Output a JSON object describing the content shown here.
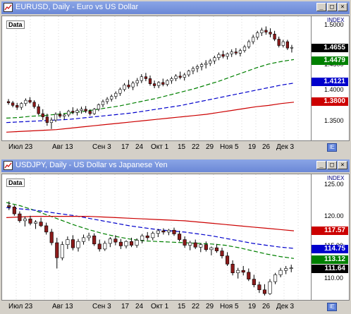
{
  "colors": {
    "bull": "#000000",
    "bear": "#8b1a1a",
    "green_ma": "#008000",
    "blue_ma": "#0000cc",
    "red_ma": "#cc0000",
    "tag_black": "#000000",
    "tag_green": "#008000",
    "tag_blue": "#0000cc",
    "tag_red": "#cc0000"
  },
  "window_buttons": {
    "minimize": "_",
    "maximize": "□",
    "close": "×"
  },
  "top": {
    "title": "EURUSD, Daily - Euro vs US Dollar",
    "data_label": "Data",
    "index_label": "INDEX",
    "axis_ticks": [
      "1.5000",
      "1.4500",
      "1.4000",
      "1.3500"
    ],
    "price_tags": [
      "1.4655",
      "1.4479",
      "1.4121",
      "1.3800"
    ],
    "x_labels": [
      "Июл 23",
      "Авг 13",
      "Сен 3",
      "17",
      "24",
      "Окт 1",
      "15",
      "22",
      "29",
      "Ноя 5",
      "19",
      "26",
      "Дек 3"
    ],
    "corner_icon": "IE",
    "chart_data": {
      "type": "candlestick",
      "ylim": [
        1.32,
        1.515
      ],
      "candles": [
        [
          1.381,
          1.385,
          1.376,
          1.379
        ],
        [
          1.379,
          1.382,
          1.372,
          1.375
        ],
        [
          1.375,
          1.379,
          1.368,
          1.372
        ],
        [
          1.372,
          1.38,
          1.368,
          1.378
        ],
        [
          1.378,
          1.386,
          1.374,
          1.383
        ],
        [
          1.383,
          1.388,
          1.378,
          1.38
        ],
        [
          1.38,
          1.383,
          1.37,
          1.373
        ],
        [
          1.373,
          1.377,
          1.36,
          1.362
        ],
        [
          1.362,
          1.369,
          1.352,
          1.357
        ],
        [
          1.357,
          1.362,
          1.343,
          1.348
        ],
        [
          1.348,
          1.356,
          1.338,
          1.352
        ],
        [
          1.352,
          1.364,
          1.349,
          1.361
        ],
        [
          1.361,
          1.366,
          1.355,
          1.358
        ],
        [
          1.358,
          1.362,
          1.353,
          1.36
        ],
        [
          1.36,
          1.368,
          1.357,
          1.366
        ],
        [
          1.366,
          1.372,
          1.361,
          1.364
        ],
        [
          1.364,
          1.37,
          1.359,
          1.367
        ],
        [
          1.367,
          1.373,
          1.362,
          1.369
        ],
        [
          1.369,
          1.374,
          1.363,
          1.366
        ],
        [
          1.366,
          1.369,
          1.359,
          1.362
        ],
        [
          1.362,
          1.371,
          1.36,
          1.369
        ],
        [
          1.369,
          1.378,
          1.366,
          1.376
        ],
        [
          1.376,
          1.384,
          1.372,
          1.381
        ],
        [
          1.381,
          1.388,
          1.377,
          1.385
        ],
        [
          1.385,
          1.392,
          1.381,
          1.389
        ],
        [
          1.389,
          1.397,
          1.385,
          1.394
        ],
        [
          1.394,
          1.403,
          1.39,
          1.4
        ],
        [
          1.4,
          1.41,
          1.397,
          1.407
        ],
        [
          1.407,
          1.415,
          1.401,
          1.404
        ],
        [
          1.404,
          1.413,
          1.399,
          1.41
        ],
        [
          1.41,
          1.418,
          1.405,
          1.414
        ],
        [
          1.414,
          1.424,
          1.41,
          1.42
        ],
        [
          1.42,
          1.426,
          1.413,
          1.417
        ],
        [
          1.417,
          1.422,
          1.406,
          1.409
        ],
        [
          1.409,
          1.414,
          1.402,
          1.406
        ],
        [
          1.406,
          1.413,
          1.402,
          1.411
        ],
        [
          1.411,
          1.417,
          1.405,
          1.408
        ],
        [
          1.408,
          1.416,
          1.405,
          1.414
        ],
        [
          1.414,
          1.42,
          1.409,
          1.417
        ],
        [
          1.417,
          1.424,
          1.413,
          1.421
        ],
        [
          1.421,
          1.428,
          1.416,
          1.419
        ],
        [
          1.419,
          1.426,
          1.414,
          1.423
        ],
        [
          1.423,
          1.431,
          1.42,
          1.429
        ],
        [
          1.429,
          1.436,
          1.424,
          1.433
        ],
        [
          1.433,
          1.439,
          1.427,
          1.436
        ],
        [
          1.436,
          1.442,
          1.43,
          1.439
        ],
        [
          1.439,
          1.446,
          1.433,
          1.441
        ],
        [
          1.441,
          1.448,
          1.437,
          1.445
        ],
        [
          1.445,
          1.453,
          1.44,
          1.45
        ],
        [
          1.45,
          1.458,
          1.446,
          1.455
        ],
        [
          1.455,
          1.461,
          1.449,
          1.452
        ],
        [
          1.452,
          1.458,
          1.447,
          1.456
        ],
        [
          1.456,
          1.463,
          1.451,
          1.459
        ],
        [
          1.459,
          1.465,
          1.454,
          1.457
        ],
        [
          1.457,
          1.464,
          1.452,
          1.461
        ],
        [
          1.461,
          1.47,
          1.458,
          1.467
        ],
        [
          1.467,
          1.478,
          1.464,
          1.475
        ],
        [
          1.475,
          1.486,
          1.471,
          1.482
        ],
        [
          1.482,
          1.492,
          1.478,
          1.489
        ],
        [
          1.489,
          1.497,
          1.484,
          1.493
        ],
        [
          1.493,
          1.499,
          1.486,
          1.49
        ],
        [
          1.49,
          1.496,
          1.482,
          1.487
        ],
        [
          1.487,
          1.492,
          1.476,
          1.479
        ],
        [
          1.479,
          1.483,
          1.466,
          1.469
        ],
        [
          1.469,
          1.478,
          1.466,
          1.475
        ],
        [
          1.475,
          1.478,
          1.462,
          1.465
        ],
        [
          1.465,
          1.47,
          1.458,
          1.466
        ]
      ],
      "ma": [
        {
          "color_key": "green_ma",
          "dash": true,
          "points": [
            1.355,
            1.356,
            1.358,
            1.359,
            1.361,
            1.363,
            1.365,
            1.368,
            1.371,
            1.374,
            1.378,
            1.382,
            1.386,
            1.391,
            1.396,
            1.401,
            1.407,
            1.413,
            1.42,
            1.427,
            1.434,
            1.44,
            1.444,
            1.447
          ]
        },
        {
          "color_key": "blue_ma",
          "dash": true,
          "points": [
            1.348,
            1.349,
            1.35,
            1.351,
            1.352,
            1.353,
            1.355,
            1.357,
            1.359,
            1.361,
            1.363,
            1.366,
            1.369,
            1.372,
            1.375,
            1.379,
            1.383,
            1.387,
            1.391,
            1.395,
            1.399,
            1.403,
            1.407,
            1.41
          ]
        },
        {
          "color_key": "red_ma",
          "dash": false,
          "points": [
            1.333,
            1.334,
            1.335,
            1.336,
            1.337,
            1.339,
            1.341,
            1.343,
            1.345,
            1.347,
            1.349,
            1.351,
            1.353,
            1.355,
            1.357,
            1.359,
            1.361,
            1.364,
            1.367,
            1.37,
            1.373,
            1.375,
            1.378,
            1.38
          ]
        }
      ]
    }
  },
  "bottom": {
    "title": "USDJPY, Daily - US Dollar vs Japanese Yen",
    "data_label": "Data",
    "index_label": "INDEX",
    "axis_ticks": [
      "125.00",
      "120.00",
      "115.00",
      "110.00"
    ],
    "price_tags": [
      "117.57",
      "114.75",
      "113.12",
      "111.64"
    ],
    "x_labels": [
      "Июл 23",
      "Авг 13",
      "Сен 3",
      "17",
      "24",
      "Окт 1",
      "15",
      "22",
      "29",
      "Ноя 5",
      "19",
      "26",
      "Дек 3"
    ],
    "corner_icon": "IE",
    "chart_data": {
      "type": "candlestick",
      "ylim": [
        106.5,
        126.5
      ],
      "candles": [
        [
          121.5,
          122.2,
          120.8,
          121.3
        ],
        [
          121.3,
          121.6,
          119.9,
          120.2
        ],
        [
          120.2,
          120.6,
          118.8,
          119.1
        ],
        [
          119.1,
          119.8,
          118.2,
          119.4
        ],
        [
          119.4,
          119.9,
          118.4,
          118.7
        ],
        [
          118.7,
          119.2,
          117.8,
          118.9
        ],
        [
          118.9,
          119.6,
          118.1,
          118.3
        ],
        [
          118.3,
          118.8,
          116.9,
          117.3
        ],
        [
          117.3,
          117.8,
          115.2,
          115.6
        ],
        [
          115.6,
          116.4,
          111.5,
          113.2
        ],
        [
          113.2,
          115.8,
          112.8,
          115.3
        ],
        [
          115.3,
          116.6,
          114.6,
          116.1
        ],
        [
          116.1,
          116.8,
          114.4,
          114.8
        ],
        [
          114.8,
          116.2,
          114.2,
          115.8
        ],
        [
          115.8,
          116.9,
          115.3,
          116.4
        ],
        [
          116.4,
          117.2,
          115.9,
          116.7
        ],
        [
          116.7,
          117.1,
          115.1,
          115.4
        ],
        [
          115.4,
          116.1,
          114.2,
          114.6
        ],
        [
          114.6,
          115.9,
          114.3,
          115.5
        ],
        [
          115.5,
          116.5,
          114.9,
          116.2
        ],
        [
          116.2,
          116.8,
          115.2,
          115.7
        ],
        [
          115.7,
          116.2,
          114.6,
          115.1
        ],
        [
          115.1,
          116.0,
          114.7,
          115.8
        ],
        [
          115.8,
          116.4,
          114.9,
          115.2
        ],
        [
          115.2,
          116.3,
          114.8,
          116.0
        ],
        [
          116.0,
          117.0,
          115.5,
          116.7
        ],
        [
          116.7,
          117.3,
          116.0,
          116.4
        ],
        [
          116.4,
          117.4,
          116.0,
          117.1
        ],
        [
          117.1,
          117.8,
          116.5,
          117.5
        ],
        [
          117.5,
          117.9,
          116.9,
          117.3
        ],
        [
          117.3,
          117.8,
          116.8,
          117.6
        ],
        [
          117.6,
          118.0,
          116.7,
          117.0
        ],
        [
          117.0,
          117.5,
          115.8,
          116.1
        ],
        [
          116.1,
          116.6,
          114.8,
          115.2
        ],
        [
          115.2,
          115.9,
          114.4,
          115.6
        ],
        [
          115.6,
          116.1,
          114.6,
          114.9
        ],
        [
          114.9,
          115.5,
          114.1,
          115.3
        ],
        [
          115.3,
          115.8,
          114.2,
          114.5
        ],
        [
          114.5,
          115.0,
          113.6,
          114.8
        ],
        [
          114.8,
          115.4,
          114.0,
          114.3
        ],
        [
          114.3,
          114.8,
          113.1,
          113.5
        ],
        [
          113.5,
          114.1,
          111.9,
          112.2
        ],
        [
          112.2,
          112.8,
          110.4,
          110.8
        ],
        [
          110.8,
          111.6,
          109.9,
          111.2
        ],
        [
          111.2,
          111.9,
          110.4,
          110.9
        ],
        [
          110.9,
          111.5,
          109.5,
          109.8
        ],
        [
          109.8,
          110.5,
          108.5,
          108.9
        ],
        [
          108.9,
          109.4,
          107.6,
          108.1
        ],
        [
          108.1,
          109.0,
          107.2,
          107.5
        ],
        [
          107.5,
          109.8,
          107.3,
          109.4
        ],
        [
          109.4,
          110.8,
          109.0,
          110.5
        ],
        [
          110.5,
          111.6,
          110.1,
          111.2
        ],
        [
          111.2,
          111.9,
          110.6,
          111.5
        ],
        [
          111.5,
          112.1,
          110.9,
          111.6
        ]
      ],
      "ma": [
        {
          "color_key": "green_ma",
          "dash": true,
          "points": [
            122.0,
            121.5,
            120.8,
            120.0,
            119.2,
            118.4,
            117.7,
            117.1,
            116.6,
            116.2,
            115.9,
            115.8,
            115.7,
            115.6,
            115.5,
            115.4,
            115.2,
            114.8,
            114.3,
            113.8,
            113.4,
            113.1
          ]
        },
        {
          "color_key": "blue_ma",
          "dash": true,
          "points": [
            121.2,
            121.0,
            120.8,
            120.5,
            120.2,
            119.9,
            119.5,
            119.1,
            118.7,
            118.3,
            118.0,
            117.7,
            117.5,
            117.3,
            117.0,
            116.7,
            116.3,
            115.9,
            115.5,
            115.2,
            114.9,
            114.7
          ]
        },
        {
          "color_key": "red_ma",
          "dash": false,
          "points": [
            119.6,
            119.7,
            119.8,
            119.8,
            119.8,
            119.8,
            119.8,
            119.7,
            119.6,
            119.5,
            119.4,
            119.3,
            119.2,
            119.1,
            118.9,
            118.7,
            118.5,
            118.3,
            118.1,
            117.9,
            117.7,
            117.5
          ]
        }
      ]
    }
  }
}
